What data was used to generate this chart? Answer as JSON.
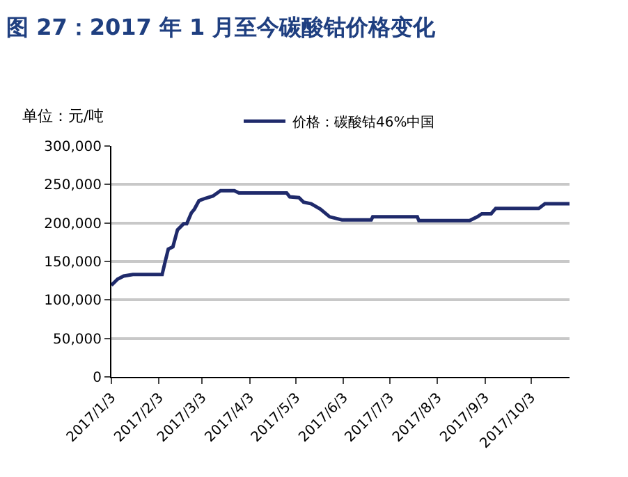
{
  "chart_data": {
    "type": "line",
    "title": "图 27：2017 年 1 月至今碳酸钴价格变化",
    "ylabel": "单位：元/吨",
    "series": [
      {
        "name": "价格：碳酸钴46%中国",
        "color": "#1f2a6b",
        "x": [
          "2017-01-03",
          "2017-01-07",
          "2017-01-11",
          "2017-01-17",
          "2017-02-05",
          "2017-02-07",
          "2017-02-09",
          "2017-02-12",
          "2017-02-15",
          "2017-02-19",
          "2017-02-21",
          "2017-02-24",
          "2017-02-26",
          "2017-03-01",
          "2017-03-05",
          "2017-03-10",
          "2017-03-15",
          "2017-03-24",
          "2017-03-27",
          "2017-04-27",
          "2017-04-29",
          "2017-05-05",
          "2017-05-08",
          "2017-05-13",
          "2017-05-19",
          "2017-05-25",
          "2017-06-02",
          "2017-06-21",
          "2017-06-22",
          "2017-07-21",
          "2017-07-22",
          "2017-08-24",
          "2017-08-29",
          "2017-09-01",
          "2017-09-07",
          "2017-09-10",
          "2017-10-08",
          "2017-10-12",
          "2017-10-28"
        ],
        "values": [
          119000,
          127000,
          131000,
          133000,
          133000,
          150000,
          166000,
          169000,
          191000,
          199000,
          199000,
          213000,
          218000,
          229000,
          232000,
          235000,
          242000,
          242000,
          239000,
          239000,
          234000,
          233000,
          227000,
          225000,
          218000,
          208000,
          204000,
          204000,
          208000,
          208000,
          203000,
          203000,
          208000,
          212000,
          212000,
          219000,
          219000,
          225000,
          225000
        ]
      }
    ],
    "xlim": [
      "2017-01-03",
      "2017-10-28"
    ],
    "xticks": [
      {
        "value": "2017-01-03",
        "label": "2017/1/3"
      },
      {
        "value": "2017-02-03",
        "label": "2017/2/3"
      },
      {
        "value": "2017-03-03",
        "label": "2017/3/3"
      },
      {
        "value": "2017-04-03",
        "label": "2017/4/3"
      },
      {
        "value": "2017-05-03",
        "label": "2017/5/3"
      },
      {
        "value": "2017-06-03",
        "label": "2017/6/3"
      },
      {
        "value": "2017-07-03",
        "label": "2017/7/3"
      },
      {
        "value": "2017-08-03",
        "label": "2017/8/3"
      },
      {
        "value": "2017-09-03",
        "label": "2017/9/3"
      },
      {
        "value": "2017-10-03",
        "label": "2017/10/3"
      }
    ],
    "ylim": [
      0,
      300000
    ],
    "yticks": [
      {
        "value": 0,
        "label": "0"
      },
      {
        "value": 50000,
        "label": "50,000"
      },
      {
        "value": 100000,
        "label": "100,000"
      },
      {
        "value": 150000,
        "label": "150,000"
      },
      {
        "value": 200000,
        "label": "200,000"
      },
      {
        "value": 250000,
        "label": "250,000"
      },
      {
        "value": 300000,
        "label": "300,000"
      }
    ],
    "grid": "y",
    "legend": "top",
    "marker": "none",
    "line_style": "solid"
  }
}
